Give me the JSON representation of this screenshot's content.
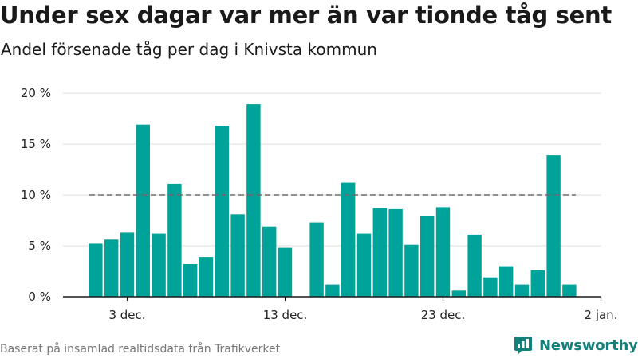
{
  "chart_data": {
    "type": "bar",
    "title": "Under sex dagar var mer än var tionde tåg sent",
    "subtitle": "Andel försenade tåg per dag i Knivsta kommun",
    "x": [
      "2023-12-01",
      "2023-12-02",
      "2023-12-03",
      "2023-12-04",
      "2023-12-05",
      "2023-12-06",
      "2023-12-07",
      "2023-12-08",
      "2023-12-09",
      "2023-12-10",
      "2023-12-11",
      "2023-12-12",
      "2023-12-13",
      "2023-12-14",
      "2023-12-15",
      "2023-12-16",
      "2023-12-17",
      "2023-12-18",
      "2023-12-19",
      "2023-12-20",
      "2023-12-21",
      "2023-12-22",
      "2023-12-23",
      "2023-12-24",
      "2023-12-25",
      "2023-12-26",
      "2023-12-27",
      "2023-12-28",
      "2023-12-29",
      "2023-12-30",
      "2023-12-31"
    ],
    "values": [
      5.2,
      5.6,
      6.3,
      16.9,
      6.2,
      11.1,
      3.2,
      3.9,
      16.8,
      8.1,
      18.9,
      6.9,
      4.8,
      0,
      7.3,
      1.2,
      11.2,
      6.2,
      8.7,
      8.6,
      5.1,
      7.9,
      8.8,
      0.6,
      6.1,
      1.9,
      3.0,
      1.2,
      2.6,
      13.9,
      1.2
    ],
    "ylim": [
      0,
      20
    ],
    "yticks": [
      0,
      5,
      10,
      15,
      20
    ],
    "ytick_labels": [
      "0 %",
      "5 %",
      "10 %",
      "15 %",
      "20 %"
    ],
    "xticks": [
      "2023-12-03",
      "2023-12-13",
      "2023-12-23",
      "2024-01-02"
    ],
    "xtick_labels": [
      "3 dec.",
      "13 dec.",
      "23 dec.",
      "2 jan."
    ],
    "reference_line": 10,
    "grid": true,
    "bar_color": "#00a39a",
    "reference_line_color": "#6b6b6b",
    "grid_color": "#dddddd"
  },
  "footer": {
    "source": "Baserat på insamlad realtidsdata från Trafikverket",
    "brand": "Newsworthy",
    "brand_icon": "newsworthy-logo-icon",
    "brand_color": "#157f7a"
  }
}
